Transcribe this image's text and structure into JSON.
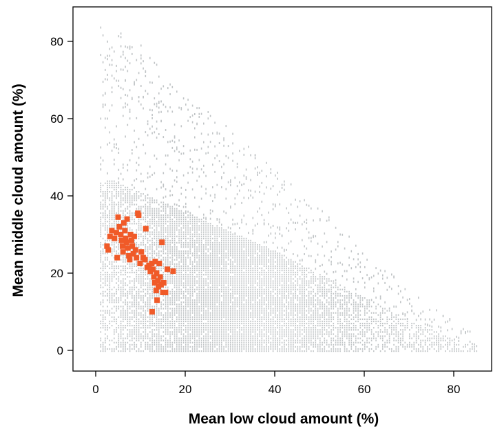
{
  "chart_data": {
    "type": "scatter",
    "title": "",
    "xlabel": "Mean low cloud amount (%)",
    "ylabel": "Mean middle cloud amount (%)",
    "xlim": [
      -5,
      89
    ],
    "ylim": [
      -6,
      89
    ],
    "xticks": [
      0,
      20,
      40,
      60,
      80
    ],
    "yticks": [
      0,
      20,
      40,
      60,
      80
    ],
    "grid": false,
    "legend": "none",
    "series": [
      {
        "style": "background-density",
        "color": "#c0c4c6",
        "note_points_approximated": true,
        "envelope": {
          "x_start": 1,
          "x_end": 85,
          "dense_top": [
            [
              4,
              44
            ],
            [
              10,
              41
            ],
            [
              20,
              36
            ],
            [
              30,
              31
            ],
            [
              40,
              26
            ],
            [
              50,
              20
            ],
            [
              60,
              14
            ],
            [
              70,
              8
            ],
            [
              80,
              3
            ],
            [
              85,
              1
            ]
          ],
          "sparse_top": [
            [
              5,
              84
            ],
            [
              10,
              80
            ],
            [
              15,
              72
            ],
            [
              20,
              66
            ],
            [
              30,
              58
            ],
            [
              40,
              47
            ],
            [
              50,
              37
            ],
            [
              60,
              26
            ],
            [
              70,
              16
            ],
            [
              80,
              8
            ],
            [
              85,
              5
            ]
          ]
        }
      },
      {
        "style": "highlight",
        "color": "#f05a28",
        "points": [
          [
            2.5,
            27
          ],
          [
            2.8,
            26
          ],
          [
            3.2,
            29.5
          ],
          [
            3.6,
            31
          ],
          [
            4.2,
            29
          ],
          [
            4.6,
            30.5
          ],
          [
            4.8,
            24
          ],
          [
            5.0,
            34.5
          ],
          [
            5.3,
            32
          ],
          [
            5.6,
            30
          ],
          [
            5.8,
            28.5
          ],
          [
            6.0,
            27
          ],
          [
            6.1,
            25.5
          ],
          [
            6.3,
            33
          ],
          [
            6.5,
            31
          ],
          [
            6.7,
            29
          ],
          [
            6.9,
            28
          ],
          [
            7.0,
            34
          ],
          [
            7.2,
            26.5
          ],
          [
            7.4,
            24.5
          ],
          [
            7.6,
            23.5
          ],
          [
            7.8,
            30
          ],
          [
            8.0,
            28.5
          ],
          [
            8.2,
            27
          ],
          [
            8.4,
            25
          ],
          [
            8.6,
            29.5
          ],
          [
            8.9,
            26
          ],
          [
            9.1,
            24
          ],
          [
            9.4,
            35.5
          ],
          [
            9.6,
            35
          ],
          [
            9.9,
            22.5
          ],
          [
            10.2,
            25.5
          ],
          [
            10.6,
            24
          ],
          [
            11.0,
            23.5
          ],
          [
            11.2,
            31.5
          ],
          [
            11.5,
            21.5
          ],
          [
            11.9,
            22
          ],
          [
            12.2,
            20.5
          ],
          [
            12.5,
            22.5
          ],
          [
            12.8,
            21
          ],
          [
            13.0,
            19
          ],
          [
            13.2,
            17.5
          ],
          [
            13.3,
            23
          ],
          [
            13.5,
            15.5
          ],
          [
            13.6,
            20
          ],
          [
            13.7,
            13
          ],
          [
            13.9,
            18
          ],
          [
            14.0,
            16.5
          ],
          [
            14.2,
            22.5
          ],
          [
            14.4,
            19
          ],
          [
            14.6,
            17
          ],
          [
            14.8,
            28
          ],
          [
            15.0,
            15
          ],
          [
            15.2,
            17.5
          ],
          [
            15.6,
            15
          ],
          [
            16.0,
            21
          ],
          [
            17.3,
            20.5
          ],
          [
            12.6,
            10
          ]
        ]
      }
    ]
  }
}
